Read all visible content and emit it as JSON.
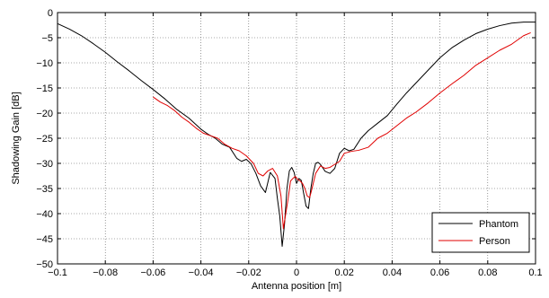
{
  "chart_data": {
    "type": "line",
    "title": "",
    "xlabel": "Antenna position [m]",
    "ylabel": "Shadowing Gain [dB]",
    "xlim": [
      -0.1,
      0.1
    ],
    "ylim": [
      -50,
      0
    ],
    "xticks": [
      -0.1,
      -0.08,
      -0.06,
      -0.04,
      -0.02,
      0,
      0.02,
      0.04,
      0.06,
      0.08,
      0.1
    ],
    "yticks": [
      0,
      -5,
      -10,
      -15,
      -20,
      -25,
      -30,
      -35,
      -40,
      -45,
      -50
    ],
    "xtick_labels": [
      "−0.1",
      "−0.08",
      "−0.06",
      "−0.04",
      "−0.02",
      "0",
      "0.02",
      "0.04",
      "0.06",
      "0.08",
      "0.1"
    ],
    "ytick_labels": [
      "0",
      "−5",
      "−10",
      "−15",
      "−20",
      "−25",
      "−30",
      "−35",
      "−40",
      "−45",
      "−50"
    ],
    "grid": true,
    "grid_style": "dotted",
    "legend_position": "bottom-right",
    "series": [
      {
        "name": "Phantom",
        "color": "#000000",
        "x": [
          -0.1,
          -0.095,
          -0.09,
          -0.085,
          -0.08,
          -0.075,
          -0.07,
          -0.065,
          -0.06,
          -0.055,
          -0.05,
          -0.045,
          -0.04,
          -0.037,
          -0.034,
          -0.031,
          -0.028,
          -0.025,
          -0.023,
          -0.021,
          -0.019,
          -0.017,
          -0.015,
          -0.013,
          -0.011,
          -0.009,
          -0.008,
          -0.007,
          -0.006,
          -0.005,
          -0.004,
          -0.003,
          -0.002,
          -0.001,
          0,
          0.001,
          0.002,
          0.003,
          0.004,
          0.005,
          0.006,
          0.007,
          0.008,
          0.009,
          0.01,
          0.012,
          0.014,
          0.016,
          0.018,
          0.02,
          0.022,
          0.024,
          0.027,
          0.03,
          0.034,
          0.038,
          0.042,
          0.046,
          0.05,
          0.055,
          0.06,
          0.065,
          0.07,
          0.075,
          0.08,
          0.085,
          0.09,
          0.095,
          0.1
        ],
        "y": [
          -2.2,
          -3.3,
          -4.6,
          -6.2,
          -7.9,
          -9.8,
          -11.6,
          -13.5,
          -15.3,
          -17.2,
          -19.3,
          -21.0,
          -23.2,
          -24.2,
          -25.0,
          -26.2,
          -26.8,
          -29.0,
          -29.6,
          -29.2,
          -30.1,
          -32.0,
          -34.5,
          -35.8,
          -31.8,
          -33.0,
          -37.0,
          -40.5,
          -46.5,
          -42.0,
          -35.0,
          -31.5,
          -30.8,
          -31.8,
          -34.0,
          -33.0,
          -33.4,
          -36.0,
          -38.5,
          -39.0,
          -35.0,
          -32.0,
          -30.0,
          -29.8,
          -30.2,
          -31.6,
          -32.0,
          -31.0,
          -28.0,
          -27.0,
          -27.5,
          -27.2,
          -25.0,
          -23.5,
          -22.0,
          -20.5,
          -18.2,
          -16.0,
          -14.0,
          -11.5,
          -9.0,
          -7.0,
          -5.5,
          -4.2,
          -3.3,
          -2.6,
          -2.1,
          -1.9,
          -1.9
        ]
      },
      {
        "name": "Person",
        "color": "#e00000",
        "x": [
          -0.06,
          -0.057,
          -0.054,
          -0.051,
          -0.048,
          -0.045,
          -0.042,
          -0.039,
          -0.036,
          -0.033,
          -0.03,
          -0.027,
          -0.024,
          -0.021,
          -0.018,
          -0.016,
          -0.014,
          -0.012,
          -0.01,
          -0.008,
          -0.0065,
          -0.0055,
          -0.0045,
          -0.0035,
          -0.0025,
          -0.0015,
          -0.0005,
          0.0005,
          0.0015,
          0.0025,
          0.0035,
          0.0045,
          0.0055,
          0.0065,
          0.008,
          0.01,
          0.012,
          0.014,
          0.016,
          0.018,
          0.02,
          0.023,
          0.026,
          0.03,
          0.034,
          0.038,
          0.042,
          0.046,
          0.05,
          0.055,
          0.06,
          0.065,
          0.07,
          0.075,
          0.08,
          0.085,
          0.09,
          0.095,
          0.098
        ],
        "y": [
          -16.8,
          -17.8,
          -18.5,
          -19.5,
          -20.8,
          -21.8,
          -23.0,
          -24.0,
          -24.5,
          -25.0,
          -26.2,
          -27.0,
          -27.5,
          -28.5,
          -30.0,
          -32.0,
          -32.5,
          -31.5,
          -31.0,
          -32.5,
          -36.5,
          -43.0,
          -40.0,
          -37.0,
          -33.5,
          -33.0,
          -32.6,
          -33.2,
          -33.5,
          -34.0,
          -35.0,
          -36.5,
          -36.8,
          -35.0,
          -32.0,
          -30.5,
          -31.0,
          -30.8,
          -30.2,
          -29.6,
          -28.0,
          -27.6,
          -27.4,
          -26.8,
          -25.0,
          -24.0,
          -22.5,
          -21.0,
          -19.8,
          -18.0,
          -16.0,
          -14.2,
          -12.5,
          -10.5,
          -9.0,
          -7.5,
          -6.3,
          -4.6,
          -4.0
        ]
      }
    ]
  }
}
